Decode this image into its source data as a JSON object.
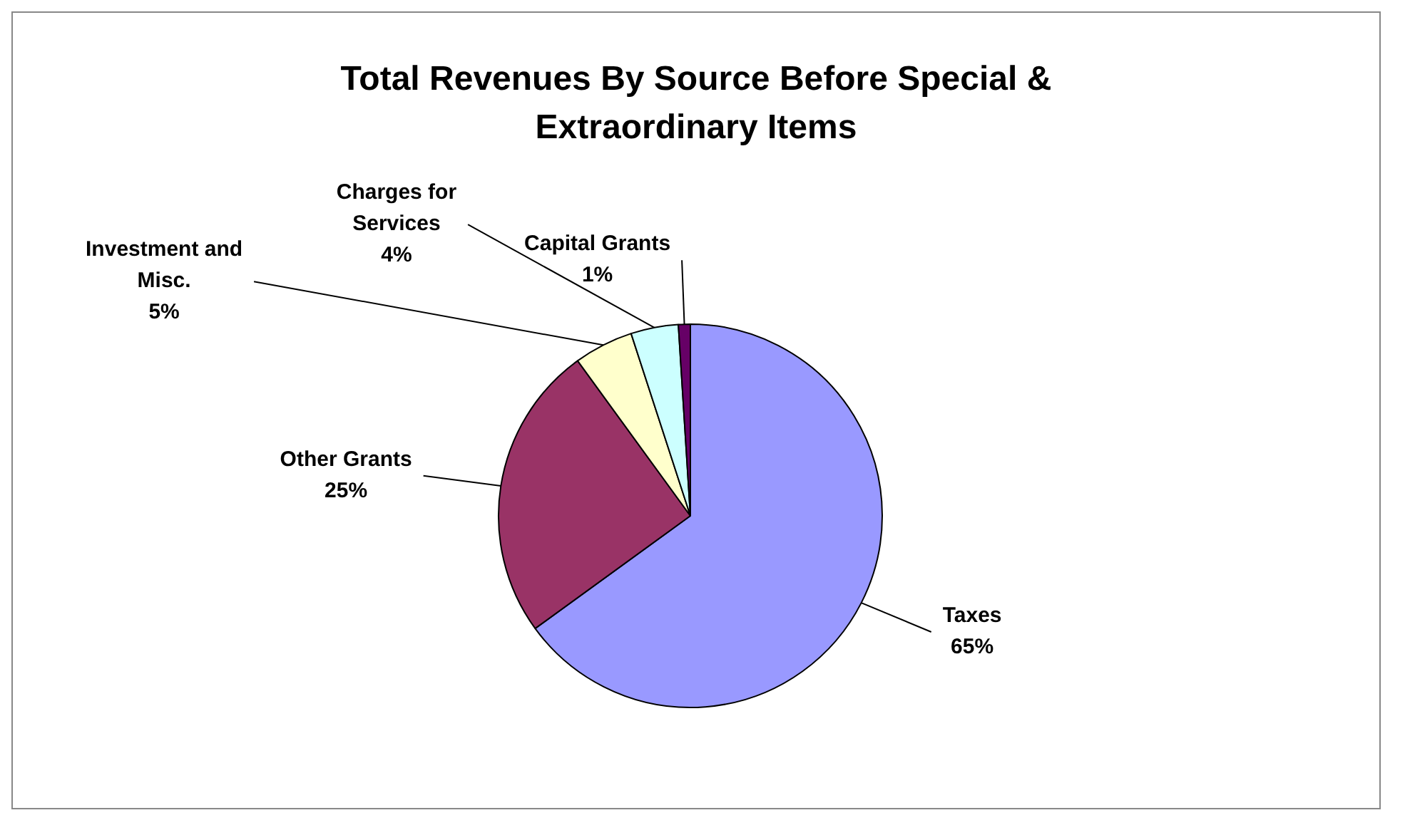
{
  "chart_data": {
    "type": "pie",
    "title": "Total Revenues By Source Before Special & Extraordinary Items",
    "categories": [
      "Taxes",
      "Other Grants",
      "Investment and Misc.",
      "Charges for Services",
      "Capital Grants"
    ],
    "values": [
      65,
      25,
      5,
      4,
      1
    ],
    "value_labels": [
      "65%",
      "25%",
      "5%",
      "4%",
      "1%"
    ],
    "colors": [
      "#9999ff",
      "#993366",
      "#ffffcc",
      "#ccffff",
      "#660066"
    ],
    "legend": false
  }
}
